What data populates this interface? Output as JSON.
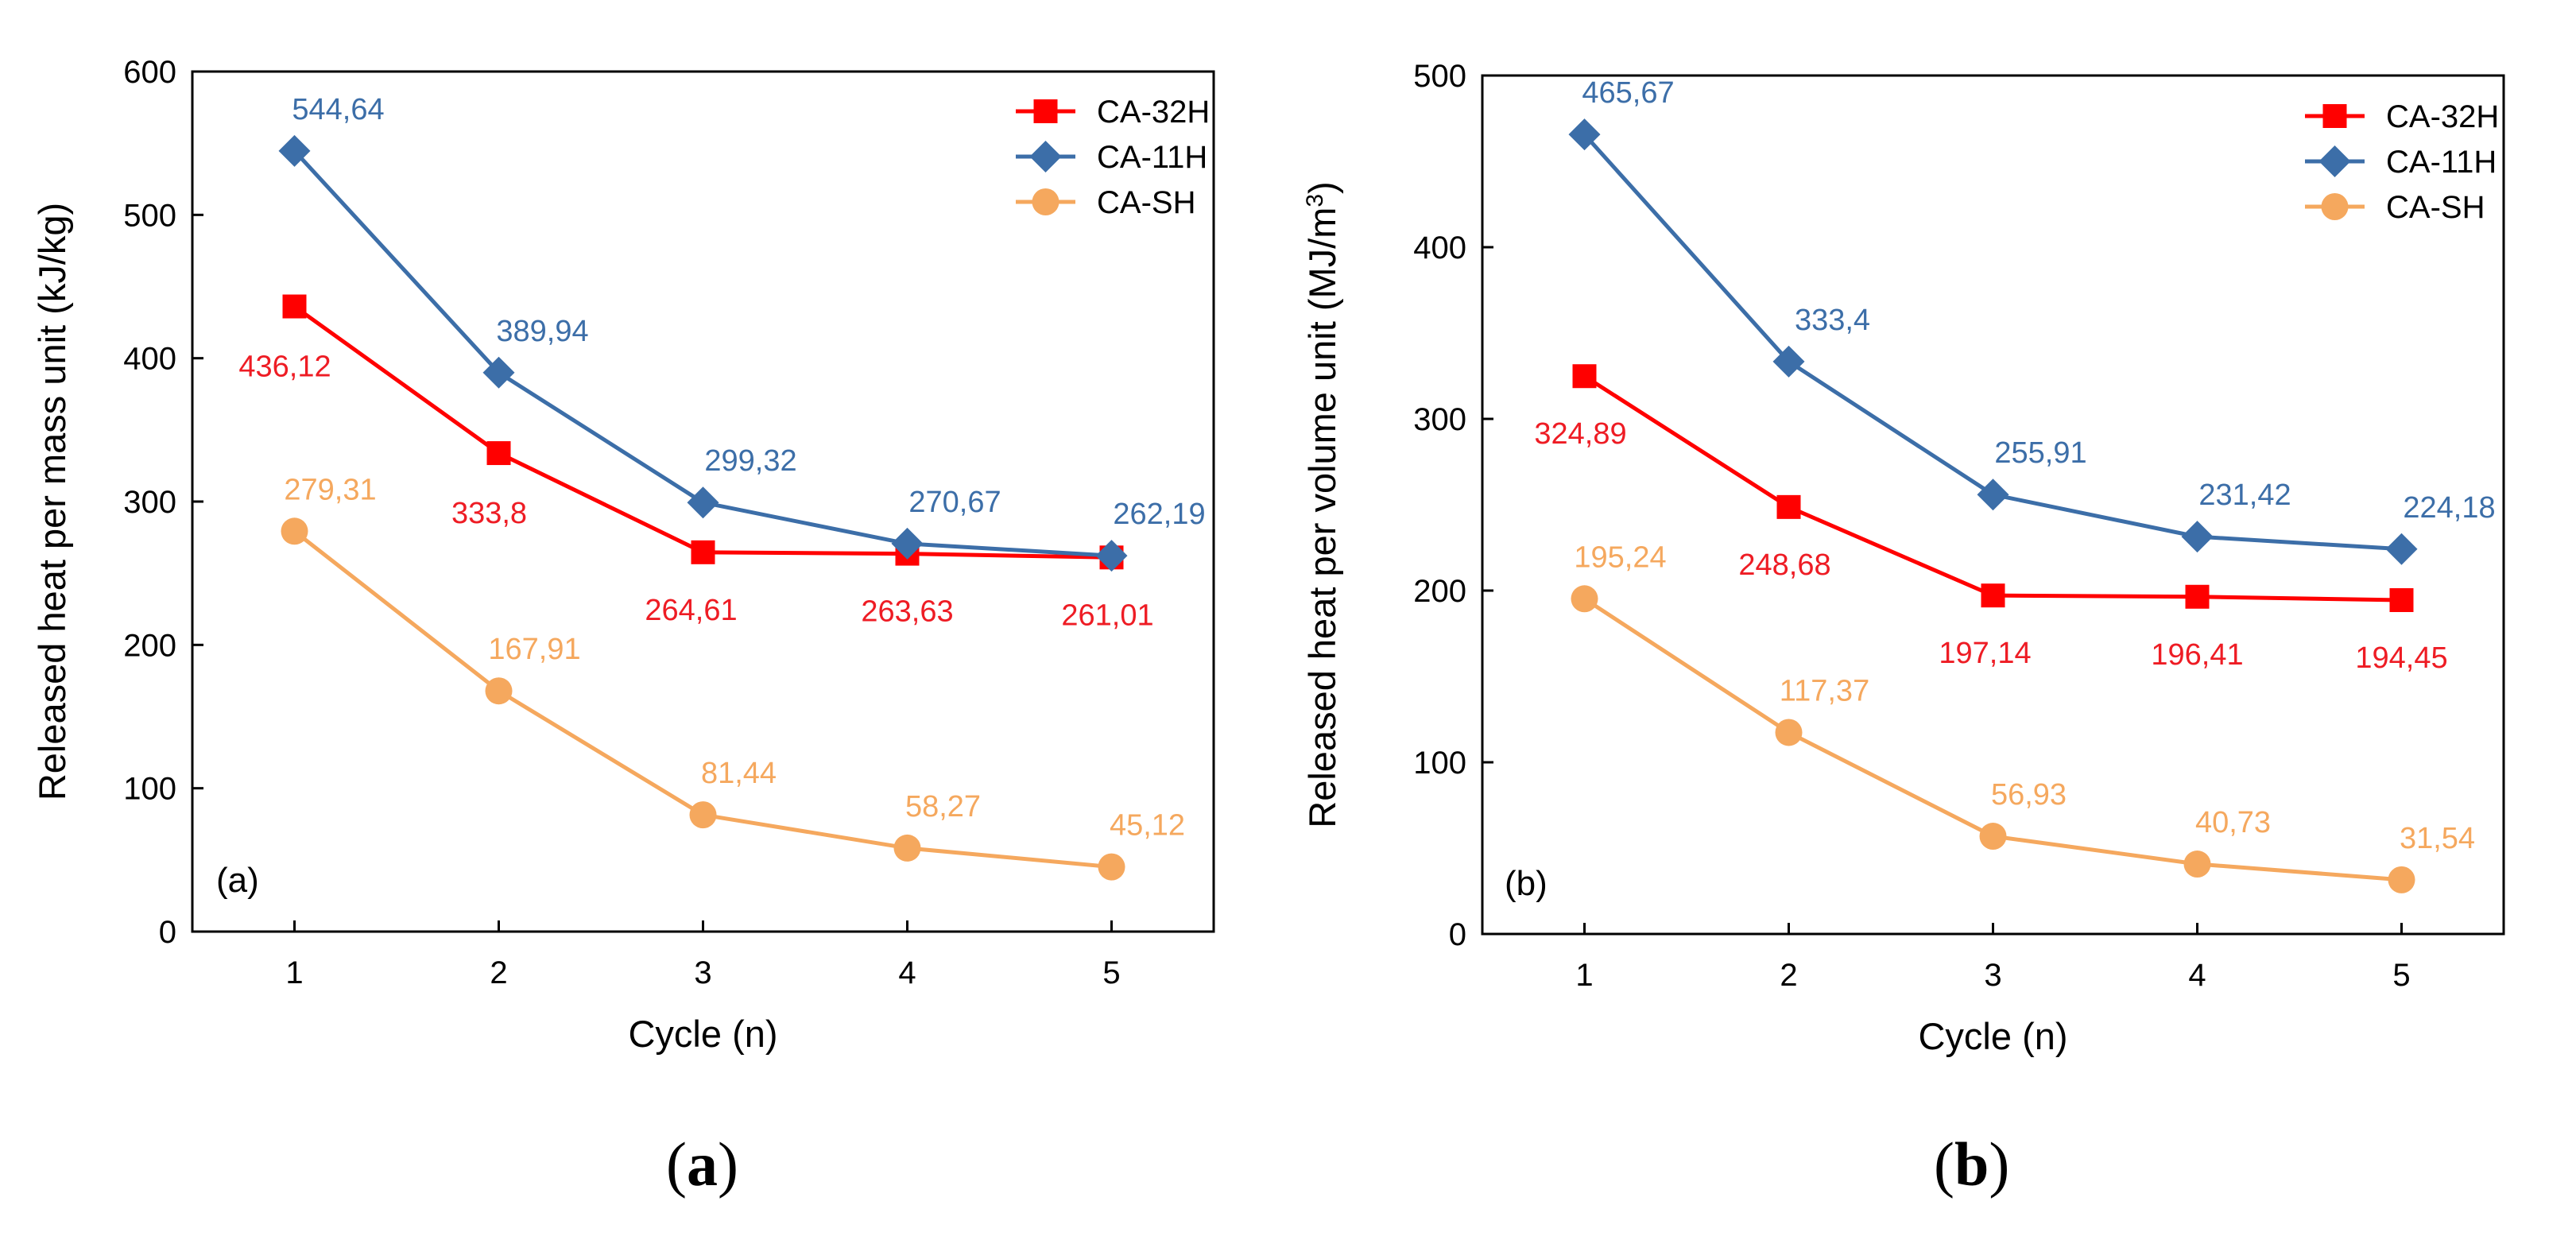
{
  "chart_data": [
    {
      "type": "line",
      "panel": "a",
      "panel_label": "(a)",
      "xlabel": "Cycle (n)",
      "ylabel": "Released heat per mass unit (kJ/kg)",
      "x": [
        1,
        2,
        3,
        4,
        5
      ],
      "xlim": [
        0.5,
        5.5
      ],
      "ylim": [
        0,
        600
      ],
      "yticks": [
        0,
        100,
        200,
        300,
        400,
        500,
        600
      ],
      "legend_position": "top-right",
      "series": [
        {
          "name": "CA-32H",
          "marker": "square",
          "color": "#ff0000",
          "label_color": "#ee1c24",
          "values": [
            436.12,
            333.8,
            264.61,
            263.63,
            261.01
          ],
          "labels": [
            "436,12",
            "333,8",
            "264,61",
            "263,63",
            "261,01"
          ]
        },
        {
          "name": "CA-11H",
          "marker": "diamond",
          "color": "#3c6ea8",
          "label_color": "#3c6ea8",
          "values": [
            544.64,
            389.94,
            299.32,
            270.67,
            262.19
          ],
          "labels": [
            "544,64",
            "389,94",
            "299,32",
            "270,67",
            "262,19"
          ]
        },
        {
          "name": "CA-SH",
          "marker": "circle",
          "color": "#f5a85e",
          "label_color": "#f5a85e",
          "values": [
            279.31,
            167.91,
            81.44,
            58.27,
            45.12
          ],
          "labels": [
            "279,31",
            "167,91",
            "81,44",
            "58,27",
            "45,12"
          ]
        }
      ]
    },
    {
      "type": "line",
      "panel": "b",
      "panel_label": "(b)",
      "xlabel": "Cycle (n)",
      "ylabel": "Released heat per volume unit (MJ/m",
      "ylabel_sup": "3",
      "ylabel_end": ")",
      "x": [
        1,
        2,
        3,
        4,
        5
      ],
      "xlim": [
        0.5,
        5.5
      ],
      "ylim": [
        0,
        500
      ],
      "yticks": [
        0,
        100,
        200,
        300,
        400,
        500
      ],
      "legend_position": "top-right",
      "series": [
        {
          "name": "CA-32H",
          "marker": "square",
          "color": "#ff0000",
          "label_color": "#ee1c24",
          "values": [
            324.89,
            248.68,
            197.14,
            196.41,
            194.45
          ],
          "labels": [
            "324,89",
            "248,68",
            "197,14",
            "196,41",
            "194,45"
          ]
        },
        {
          "name": "CA-11H",
          "marker": "diamond",
          "color": "#3c6ea8",
          "label_color": "#3c6ea8",
          "values": [
            465.67,
            333.4,
            255.91,
            231.42,
            224.18
          ],
          "labels": [
            "465,67",
            "333,4",
            "255,91",
            "231,42",
            "224,18"
          ]
        },
        {
          "name": "CA-SH",
          "marker": "circle",
          "color": "#f5a85e",
          "label_color": "#f5a85e",
          "values": [
            195.24,
            117.37,
            56.93,
            40.73,
            31.54
          ],
          "labels": [
            "195,24",
            "117,37",
            "56,93",
            "40,73",
            "31,54"
          ]
        }
      ]
    }
  ],
  "captions": {
    "a": {
      "open": "(",
      "letter": "a",
      "close": ")"
    },
    "b": {
      "open": "(",
      "letter": "b",
      "close": ")"
    }
  }
}
